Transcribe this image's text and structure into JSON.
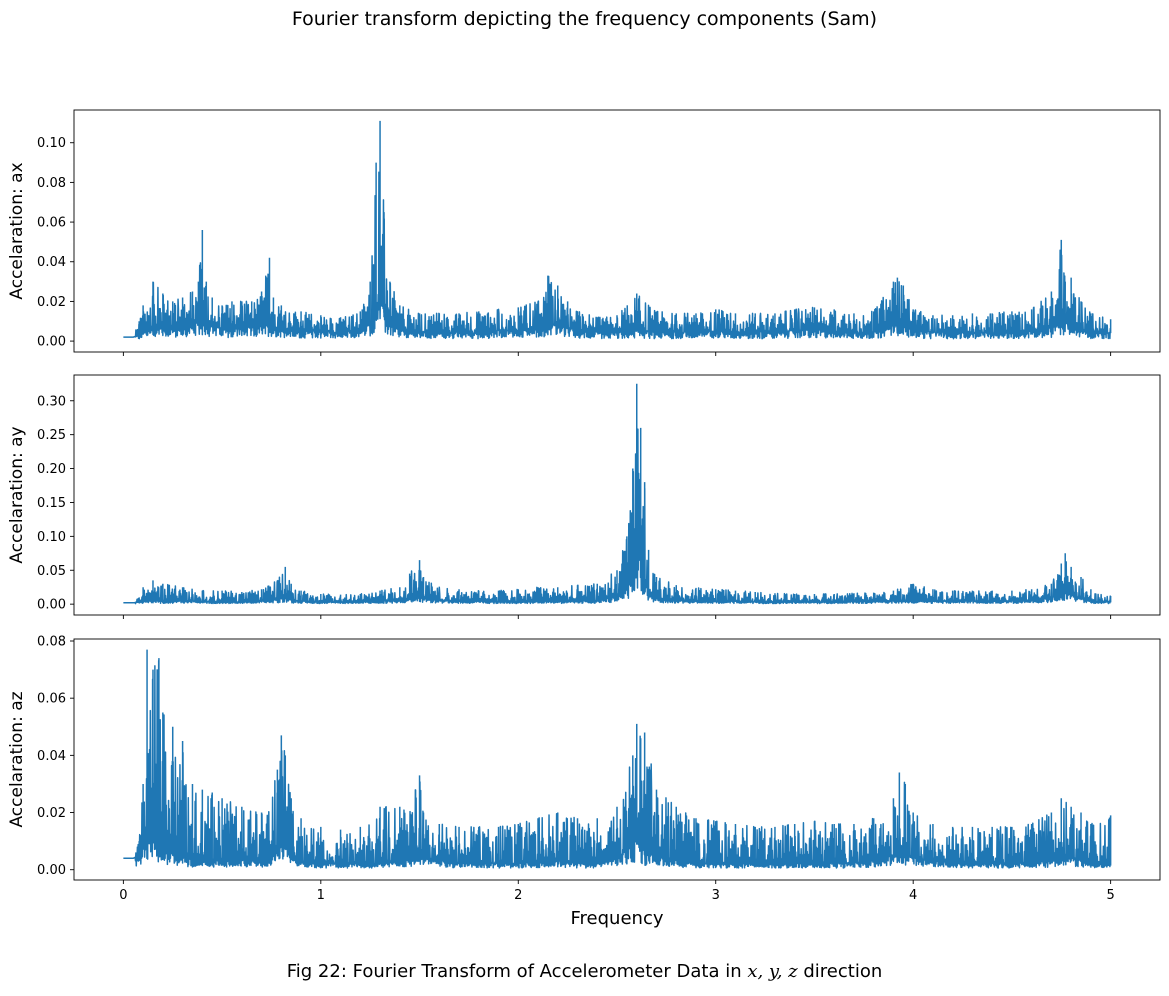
{
  "figure": {
    "title": "Fourier transform depicting the frequency components (Sam)",
    "caption_prefix": "Fig 22: Fourier Transform of Accelerometer Data in ",
    "caption_vars": "x, y, z",
    "caption_suffix": " direction"
  },
  "colors": {
    "line": "#1f77b4",
    "axes": "#000000"
  },
  "chart_data": [
    {
      "type": "line",
      "ylabel": "Accelaration: ax",
      "xlabel": "",
      "xlim": [
        -0.25,
        5.25
      ],
      "ylim": [
        -0.0055,
        0.1165
      ],
      "yticks": [
        0.0,
        0.02,
        0.04,
        0.06,
        0.08,
        0.1
      ],
      "ytick_labels": [
        "0.00",
        "0.02",
        "0.04",
        "0.06",
        "0.08",
        "0.10"
      ],
      "xticks": [
        0,
        1,
        2,
        3,
        4,
        5
      ],
      "xtick_labels": [
        "",
        "",
        "",
        "",
        "",
        ""
      ],
      "series": [
        {
          "x": [
            0,
            0.05,
            0.08,
            0.1,
            0.15,
            0.2,
            0.25,
            0.3,
            0.35,
            0.38,
            0.4,
            0.42,
            0.45,
            0.5,
            0.55,
            0.6,
            0.65,
            0.7,
            0.74,
            0.76,
            0.8,
            0.9,
            1.0,
            1.1,
            1.2,
            1.25,
            1.28,
            1.3,
            1.32,
            1.35,
            1.4,
            1.5,
            1.6,
            1.7,
            1.8,
            1.9,
            2.0,
            2.1,
            2.15,
            2.2,
            2.25,
            2.3,
            2.4,
            2.5,
            2.6,
            2.7,
            2.8,
            2.9,
            3.0,
            3.1,
            3.2,
            3.3,
            3.4,
            3.5,
            3.6,
            3.7,
            3.8,
            3.9,
            3.92,
            3.95,
            4.0,
            4.1,
            4.2,
            4.3,
            4.4,
            4.5,
            4.6,
            4.7,
            4.75,
            4.77,
            4.8,
            4.85,
            4.9,
            5.0
          ],
          "baseline": [
            0.002,
            0.002,
            0.003,
            0.005,
            0.006,
            0.007,
            0.006,
            0.006,
            0.007,
            0.008,
            0.01,
            0.008,
            0.007,
            0.006,
            0.006,
            0.006,
            0.006,
            0.007,
            0.008,
            0.007,
            0.006,
            0.005,
            0.005,
            0.004,
            0.005,
            0.008,
            0.015,
            0.02,
            0.012,
            0.008,
            0.005,
            0.004,
            0.004,
            0.004,
            0.004,
            0.005,
            0.005,
            0.006,
            0.008,
            0.008,
            0.006,
            0.005,
            0.004,
            0.004,
            0.005,
            0.004,
            0.004,
            0.004,
            0.005,
            0.004,
            0.004,
            0.004,
            0.005,
            0.005,
            0.005,
            0.004,
            0.004,
            0.008,
            0.009,
            0.008,
            0.005,
            0.004,
            0.004,
            0.004,
            0.004,
            0.004,
            0.005,
            0.006,
            0.009,
            0.009,
            0.007,
            0.005,
            0.004,
            0.004
          ],
          "peak": [
            0.002,
            0.002,
            0.01,
            0.018,
            0.03,
            0.024,
            0.02,
            0.022,
            0.025,
            0.03,
            0.056,
            0.03,
            0.022,
            0.018,
            0.02,
            0.02,
            0.02,
            0.025,
            0.042,
            0.022,
            0.018,
            0.015,
            0.013,
            0.012,
            0.015,
            0.03,
            0.09,
            0.111,
            0.065,
            0.03,
            0.018,
            0.014,
            0.014,
            0.014,
            0.015,
            0.016,
            0.017,
            0.02,
            0.033,
            0.028,
            0.02,
            0.015,
            0.012,
            0.013,
            0.024,
            0.015,
            0.014,
            0.014,
            0.016,
            0.014,
            0.014,
            0.014,
            0.016,
            0.017,
            0.016,
            0.014,
            0.015,
            0.03,
            0.032,
            0.028,
            0.016,
            0.013,
            0.013,
            0.014,
            0.014,
            0.015,
            0.016,
            0.025,
            0.051,
            0.03,
            0.032,
            0.02,
            0.014,
            0.011
          ]
        }
      ]
    },
    {
      "type": "line",
      "ylabel": "Accelaration: ay",
      "xlabel": "",
      "xlim": [
        -0.25,
        5.25
      ],
      "ylim": [
        -0.016,
        0.338
      ],
      "yticks": [
        0.0,
        0.05,
        0.1,
        0.15,
        0.2,
        0.25,
        0.3
      ],
      "ytick_labels": [
        "0.00",
        "0.05",
        "0.10",
        "0.15",
        "0.20",
        "0.25",
        "0.30"
      ],
      "xticks": [
        0,
        1,
        2,
        3,
        4,
        5
      ],
      "xtick_labels": [
        "",
        "",
        "",
        "",
        "",
        ""
      ],
      "series": [
        {
          "x": [
            0,
            0.05,
            0.08,
            0.1,
            0.15,
            0.2,
            0.3,
            0.4,
            0.5,
            0.6,
            0.7,
            0.78,
            0.82,
            0.85,
            0.9,
            1.0,
            1.1,
            1.2,
            1.3,
            1.4,
            1.45,
            1.5,
            1.52,
            1.6,
            1.7,
            1.8,
            1.9,
            2.0,
            2.1,
            2.2,
            2.3,
            2.4,
            2.5,
            2.55,
            2.58,
            2.6,
            2.62,
            2.64,
            2.66,
            2.7,
            2.8,
            2.9,
            3.0,
            3.1,
            3.2,
            3.3,
            3.4,
            3.5,
            3.6,
            3.7,
            3.8,
            3.9,
            4.0,
            4.1,
            4.2,
            4.3,
            4.4,
            4.5,
            4.6,
            4.7,
            4.75,
            4.77,
            4.8,
            4.85,
            4.9,
            5.0
          ],
          "baseline": [
            0.002,
            0.002,
            0.003,
            0.005,
            0.005,
            0.004,
            0.004,
            0.004,
            0.003,
            0.003,
            0.004,
            0.006,
            0.01,
            0.006,
            0.004,
            0.003,
            0.003,
            0.003,
            0.004,
            0.005,
            0.008,
            0.012,
            0.008,
            0.005,
            0.004,
            0.004,
            0.003,
            0.003,
            0.004,
            0.004,
            0.004,
            0.005,
            0.01,
            0.02,
            0.04,
            0.07,
            0.06,
            0.03,
            0.015,
            0.008,
            0.005,
            0.004,
            0.004,
            0.004,
            0.003,
            0.003,
            0.003,
            0.003,
            0.003,
            0.004,
            0.004,
            0.005,
            0.005,
            0.004,
            0.004,
            0.004,
            0.004,
            0.004,
            0.005,
            0.008,
            0.015,
            0.015,
            0.012,
            0.008,
            0.004,
            0.003
          ],
          "peak": [
            0.002,
            0.002,
            0.01,
            0.025,
            0.035,
            0.03,
            0.025,
            0.02,
            0.02,
            0.018,
            0.022,
            0.035,
            0.055,
            0.03,
            0.02,
            0.015,
            0.014,
            0.015,
            0.02,
            0.025,
            0.045,
            0.065,
            0.04,
            0.025,
            0.022,
            0.02,
            0.02,
            0.022,
            0.025,
            0.025,
            0.028,
            0.03,
            0.05,
            0.1,
            0.2,
            0.325,
            0.26,
            0.18,
            0.08,
            0.04,
            0.028,
            0.024,
            0.022,
            0.02,
            0.018,
            0.016,
            0.015,
            0.015,
            0.015,
            0.016,
            0.017,
            0.02,
            0.03,
            0.022,
            0.02,
            0.02,
            0.02,
            0.02,
            0.022,
            0.03,
            0.06,
            0.075,
            0.055,
            0.04,
            0.022,
            0.012
          ]
        }
      ]
    },
    {
      "type": "line",
      "ylabel": "Accelaration: az",
      "xlabel": "Frequency",
      "xlim": [
        -0.25,
        5.25
      ],
      "ylim": [
        -0.0036,
        0.0807
      ],
      "yticks": [
        0.0,
        0.02,
        0.04,
        0.06,
        0.08
      ],
      "ytick_labels": [
        "0.00",
        "0.02",
        "0.04",
        "0.06",
        "0.08"
      ],
      "xticks": [
        0,
        1,
        2,
        3,
        4,
        5
      ],
      "xtick_labels": [
        "0",
        "1",
        "2",
        "3",
        "4",
        "5"
      ],
      "series": [
        {
          "x": [
            0,
            0.05,
            0.08,
            0.1,
            0.12,
            0.15,
            0.18,
            0.2,
            0.25,
            0.3,
            0.35,
            0.4,
            0.45,
            0.5,
            0.6,
            0.7,
            0.78,
            0.8,
            0.82,
            0.85,
            0.9,
            1.0,
            1.1,
            1.2,
            1.3,
            1.4,
            1.48,
            1.5,
            1.52,
            1.6,
            1.7,
            1.8,
            1.9,
            2.0,
            2.1,
            2.2,
            2.3,
            2.4,
            2.5,
            2.58,
            2.6,
            2.62,
            2.64,
            2.7,
            2.8,
            2.9,
            3.0,
            3.1,
            3.2,
            3.3,
            3.4,
            3.5,
            3.6,
            3.7,
            3.8,
            3.9,
            3.93,
            3.96,
            4.0,
            4.1,
            4.2,
            4.3,
            4.4,
            4.5,
            4.6,
            4.7,
            4.75,
            4.8,
            4.85,
            4.9,
            5.0
          ],
          "baseline": [
            0.004,
            0.004,
            0.005,
            0.008,
            0.012,
            0.01,
            0.008,
            0.006,
            0.005,
            0.004,
            0.003,
            0.003,
            0.003,
            0.003,
            0.003,
            0.003,
            0.005,
            0.01,
            0.008,
            0.005,
            0.003,
            0.002,
            0.002,
            0.002,
            0.002,
            0.003,
            0.004,
            0.006,
            0.004,
            0.003,
            0.002,
            0.002,
            0.002,
            0.002,
            0.002,
            0.003,
            0.002,
            0.002,
            0.004,
            0.008,
            0.01,
            0.008,
            0.005,
            0.004,
            0.003,
            0.002,
            0.002,
            0.002,
            0.002,
            0.002,
            0.002,
            0.002,
            0.002,
            0.002,
            0.003,
            0.005,
            0.007,
            0.005,
            0.004,
            0.003,
            0.002,
            0.002,
            0.002,
            0.002,
            0.002,
            0.003,
            0.004,
            0.004,
            0.003,
            0.002,
            0.002
          ],
          "peak": [
            0.004,
            0.004,
            0.01,
            0.03,
            0.077,
            0.07,
            0.074,
            0.055,
            0.05,
            0.045,
            0.03,
            0.028,
            0.027,
            0.025,
            0.022,
            0.02,
            0.035,
            0.047,
            0.04,
            0.025,
            0.018,
            0.015,
            0.014,
            0.015,
            0.022,
            0.022,
            0.028,
            0.033,
            0.02,
            0.016,
            0.015,
            0.015,
            0.015,
            0.016,
            0.018,
            0.02,
            0.018,
            0.018,
            0.022,
            0.04,
            0.051,
            0.046,
            0.048,
            0.028,
            0.022,
            0.018,
            0.017,
            0.016,
            0.015,
            0.015,
            0.016,
            0.017,
            0.016,
            0.016,
            0.018,
            0.025,
            0.034,
            0.03,
            0.02,
            0.016,
            0.015,
            0.015,
            0.015,
            0.015,
            0.016,
            0.02,
            0.025,
            0.022,
            0.02,
            0.016,
            0.019
          ]
        }
      ]
    }
  ]
}
